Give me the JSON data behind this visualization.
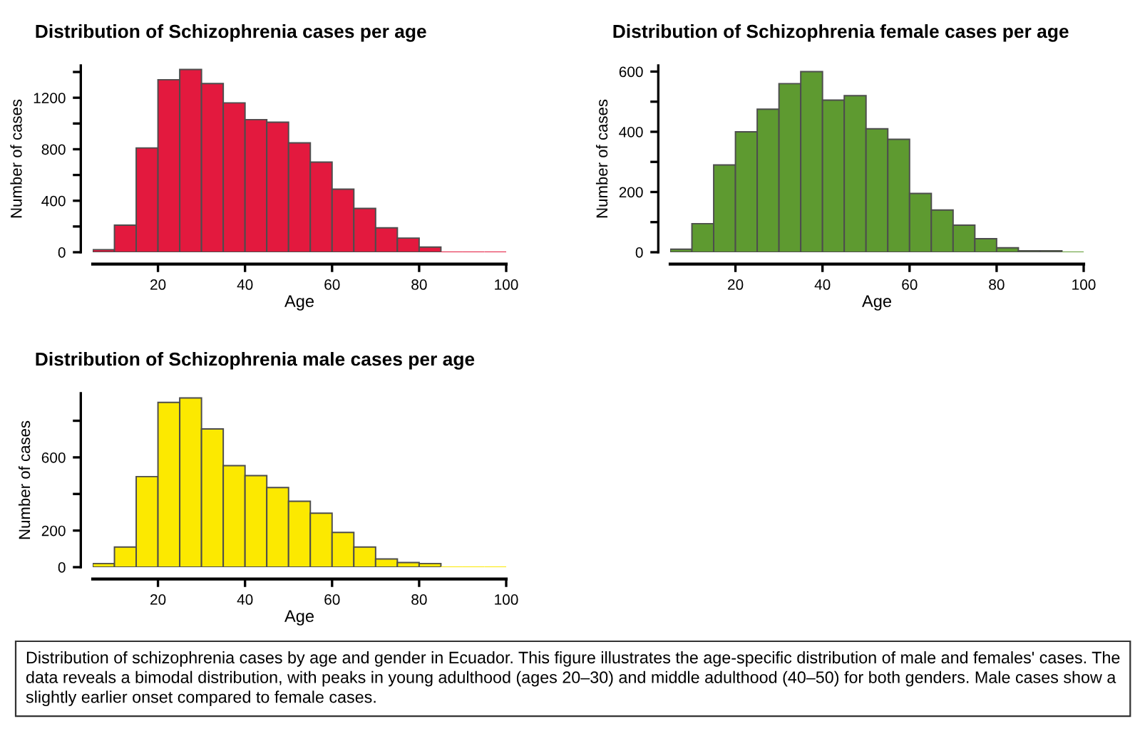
{
  "chart_data": [
    {
      "type": "histogram",
      "title": "Distribution of Schizophrenia cases per age",
      "xlabel": "Age",
      "ylabel": "Number of cases",
      "color": "#e3193e",
      "bins": [
        5,
        10,
        15,
        20,
        25,
        30,
        35,
        40,
        45,
        50,
        55,
        60,
        65,
        70,
        75,
        80,
        85,
        90,
        95,
        100
      ],
      "values": [
        20,
        210,
        810,
        1340,
        1420,
        1310,
        1160,
        1030,
        1010,
        850,
        700,
        490,
        340,
        190,
        110,
        40,
        0,
        0,
        0
      ],
      "xlim": [
        5,
        100
      ],
      "ylim": [
        0,
        1450
      ],
      "xticks": [
        20,
        40,
        60,
        80,
        100
      ],
      "yticks": [
        0,
        {
          "value": 200,
          "label": null
        },
        400,
        {
          "value": 600,
          "label": null
        },
        800,
        {
          "value": 1000,
          "label": null
        },
        1200,
        {
          "value": 1400,
          "label": null
        }
      ]
    },
    {
      "type": "histogram",
      "title": "Distribution of Schizophrenia female cases per age",
      "xlabel": "Age",
      "ylabel": "Number of cases",
      "color": "#5e9a30",
      "bins": [
        5,
        10,
        15,
        20,
        25,
        30,
        35,
        40,
        45,
        50,
        55,
        60,
        65,
        70,
        75,
        80,
        85,
        90,
        95,
        100
      ],
      "values": [
        10,
        95,
        290,
        400,
        475,
        560,
        600,
        505,
        520,
        410,
        375,
        195,
        140,
        90,
        45,
        15,
        5,
        5,
        0
      ],
      "xlim": [
        5,
        100
      ],
      "ylim": [
        0,
        620
      ],
      "xticks": [
        20,
        40,
        60,
        80,
        100
      ],
      "yticks": [
        0,
        {
          "value": 100,
          "label": null
        },
        200,
        {
          "value": 300,
          "label": null
        },
        400,
        {
          "value": 500,
          "label": null
        },
        600
      ]
    },
    {
      "type": "histogram",
      "title": "Distribution of Schizophrenia male cases per age",
      "xlabel": "Age",
      "ylabel": "Number of cases",
      "color": "#fce900",
      "bins": [
        5,
        10,
        15,
        20,
        25,
        30,
        35,
        40,
        45,
        50,
        55,
        60,
        65,
        70,
        75,
        80,
        85,
        90,
        95,
        100
      ],
      "values": [
        20,
        110,
        495,
        900,
        925,
        755,
        555,
        500,
        435,
        360,
        295,
        190,
        110,
        45,
        25,
        20,
        0,
        0,
        0
      ],
      "xlim": [
        5,
        100
      ],
      "ylim": [
        0,
        950
      ],
      "xticks": [
        20,
        40,
        60,
        80,
        100
      ],
      "yticks": [
        0,
        200,
        {
          "value": 400,
          "label": null
        },
        600,
        {
          "value": 800,
          "label": null
        }
      ]
    },
    {
      "type": "other",
      "annotations": [
        "Distribution of schizophrenia cases by age and gender in Ecuador. This figure illustrates the age-specific distribution of male and females' cases. The data reveals a bimodal distribution, with peaks in young adulthood (ages 20–30) and middle adulthood (40–50) for both genders. Male cases show a slightly earlier onset compared to female cases."
      ]
    }
  ]
}
